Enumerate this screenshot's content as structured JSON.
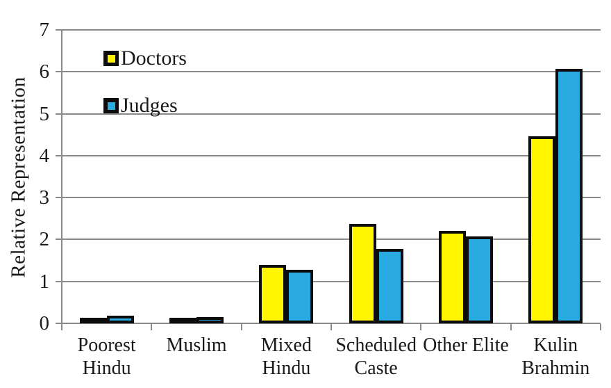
{
  "chart_data": {
    "type": "bar",
    "title": "",
    "xlabel": "",
    "ylabel": "Relative Representation",
    "ylim": [
      0,
      7
    ],
    "yticks": [
      0,
      1,
      2,
      3,
      4,
      5,
      6,
      7
    ],
    "grid": true,
    "legend_position": "top-left",
    "categories": [
      "Poorest Hindu",
      "Muslim",
      "Mixed Hindu",
      "Scheduled Caste",
      "Other Elite",
      "Kulin Brahmin"
    ],
    "category_label_lines": [
      [
        "Poorest",
        "Hindu"
      ],
      [
        "Muslim"
      ],
      [
        "Mixed",
        "Hindu"
      ],
      [
        "Scheduled",
        "Caste"
      ],
      [
        "Other Elite"
      ],
      [
        "Kulin",
        "Brahmin"
      ]
    ],
    "series": [
      {
        "name": "Doctors",
        "color": "#fff500",
        "values": [
          0.08,
          0.12,
          1.4,
          2.38,
          2.2,
          4.47
        ]
      },
      {
        "name": "Judges",
        "color": "#29abe2",
        "values": [
          0.19,
          0.15,
          1.28,
          1.78,
          2.07,
          6.07
        ]
      }
    ]
  },
  "colors": {
    "doctors_bar": "#fff500",
    "judges_bar": "#29abe2",
    "bar_border": "#0c0c0c",
    "grid_line": "#8a8a8a",
    "axis_line": "#8a8a8a",
    "text": "#1a1a1a",
    "background": "#ffffff"
  }
}
